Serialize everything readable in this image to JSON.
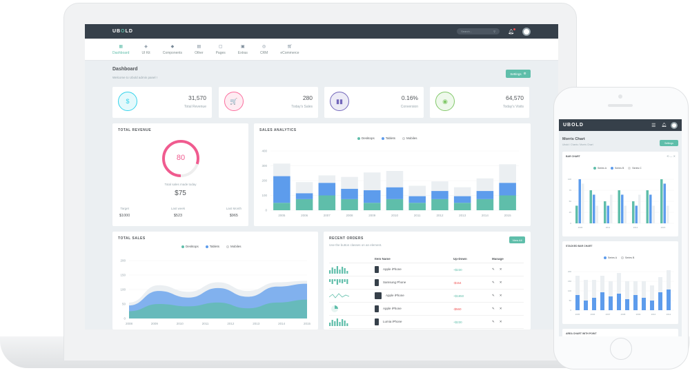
{
  "topbar": {
    "logo_a": "UB",
    "logo_o": "O",
    "logo_b": "LD",
    "search_placeholder": "Search..."
  },
  "menu": [
    {
      "label": "Dashboard",
      "icon": "grid-icon",
      "active": true
    },
    {
      "label": "UI Kit",
      "icon": "palette-icon"
    },
    {
      "label": "Components",
      "icon": "layers-icon"
    },
    {
      "label": "Other",
      "icon": "doc-icon"
    },
    {
      "label": "Pages",
      "icon": "page-icon"
    },
    {
      "label": "Extras",
      "icon": "box-icon"
    },
    {
      "label": "CRM",
      "icon": "target-icon"
    },
    {
      "label": "eCommerce",
      "icon": "cart-icon"
    }
  ],
  "header": {
    "title": "Dashboard",
    "welcome": "Welcome to Ubold admin panel !",
    "settings_label": "Settings"
  },
  "stats": [
    {
      "value": "31,570",
      "label": "Total Revenue",
      "icon": "$",
      "color": "#34d3eb"
    },
    {
      "value": "280",
      "label": "Today's Sales",
      "icon": "🛒",
      "color": "#fb6d9d"
    },
    {
      "value": "0.16%",
      "label": "Conversion",
      "icon": "▮▮",
      "color": "#7266ba"
    },
    {
      "value": "64,570",
      "label": "Today's Visits",
      "icon": "◉",
      "color": "#81c868"
    }
  ],
  "revenue": {
    "title": "TOTAL REVENUE",
    "gauge_value": "80",
    "gauge_fraction": 0.8,
    "made_today_label": "Total sales made today",
    "made_today_value": "$75",
    "targets": [
      {
        "label": "Target",
        "value": "$1000"
      },
      {
        "label": "Last week",
        "value": "$523"
      },
      {
        "label": "Last Month",
        "value": "$965"
      }
    ]
  },
  "colors": {
    "desktops": "#5fbeaa",
    "tablets": "#5d9cec",
    "mobiles": "#ebeff2",
    "series_c": "#dcdcdc"
  },
  "sales_analytics": {
    "title": "SALES ANALYTICS",
    "legend": [
      "Desktops",
      "Tablets",
      "Mobiles"
    ]
  },
  "total_sales": {
    "title": "TOTAL SALES",
    "legend": [
      "Desktops",
      "Tablets",
      "Mobiles"
    ]
  },
  "recent_orders": {
    "title": "RECENT ORDERS",
    "subtitle": "Use the button classes on an element.",
    "view_all": "View All",
    "columns": [
      "Item Name",
      "Up-Down",
      "Manage"
    ],
    "rows": [
      {
        "name": "Apple iPhone",
        "change": "+$230",
        "positive": true
      },
      {
        "name": "Samsung Phone",
        "change": "-$154",
        "positive": false
      },
      {
        "name": "Apple iPhone",
        "change": "+$1850",
        "positive": true
      },
      {
        "name": "Apple iPhone",
        "change": "-$560",
        "positive": false
      },
      {
        "name": "Lumia iPhone",
        "change": "+$230",
        "positive": true
      }
    ]
  },
  "phone": {
    "logo": "UBOLD",
    "page_title": "Morris Chart",
    "breadcrumb": "Ubold  /  Charts  /  Morris Chart",
    "settings_label": "Settings",
    "bar_chart_title": "BAR CHART",
    "bar_legend": [
      "Series A",
      "Series B",
      "Series C"
    ],
    "stacked_title": "STACKED BAR CHART",
    "stacked_legend": [
      "Series A",
      "Series B"
    ],
    "area_title": "AREA CHART WITH POINT"
  },
  "chart_data": [
    {
      "type": "bar",
      "title": "SALES ANALYTICS",
      "categories": [
        "2005",
        "2006",
        "2007",
        "2008",
        "2009",
        "2010",
        "2011",
        "2012",
        "2013",
        "2014",
        "2015"
      ],
      "series": [
        {
          "name": "Desktops",
          "values": [
            50,
            75,
            100,
            75,
            50,
            75,
            50,
            75,
            50,
            75,
            100
          ]
        },
        {
          "name": "Tablets",
          "values": [
            180,
            40,
            85,
            70,
            85,
            80,
            45,
            55,
            45,
            55,
            85
          ]
        },
        {
          "name": "Mobiles",
          "values": [
            85,
            75,
            50,
            80,
            120,
            110,
            70,
            65,
            60,
            85,
            125
          ]
        }
      ],
      "ylim": [
        0,
        400
      ],
      "yticks": [
        0,
        100,
        200,
        300,
        400
      ]
    },
    {
      "type": "area",
      "title": "TOTAL SALES",
      "x": [
        "2009",
        "2010",
        "2011",
        "2012",
        "2013",
        "2014",
        "2015"
      ],
      "categories_axis": [
        "2008",
        "2009",
        "2010",
        "2011",
        "2012",
        "2013",
        "2014",
        "2015"
      ],
      "series": [
        {
          "name": "Desktops",
          "values": [
            25,
            50,
            42,
            55,
            35,
            55,
            65
          ]
        },
        {
          "name": "Tablets",
          "values": [
            45,
            95,
            72,
            105,
            75,
            110,
            120
          ]
        },
        {
          "name": "Mobiles",
          "values": [
            55,
            115,
            92,
            125,
            95,
            125,
            130
          ]
        }
      ],
      "ylim": [
        0,
        200
      ],
      "yticks": [
        0,
        50,
        100,
        150,
        200
      ]
    }
  ]
}
